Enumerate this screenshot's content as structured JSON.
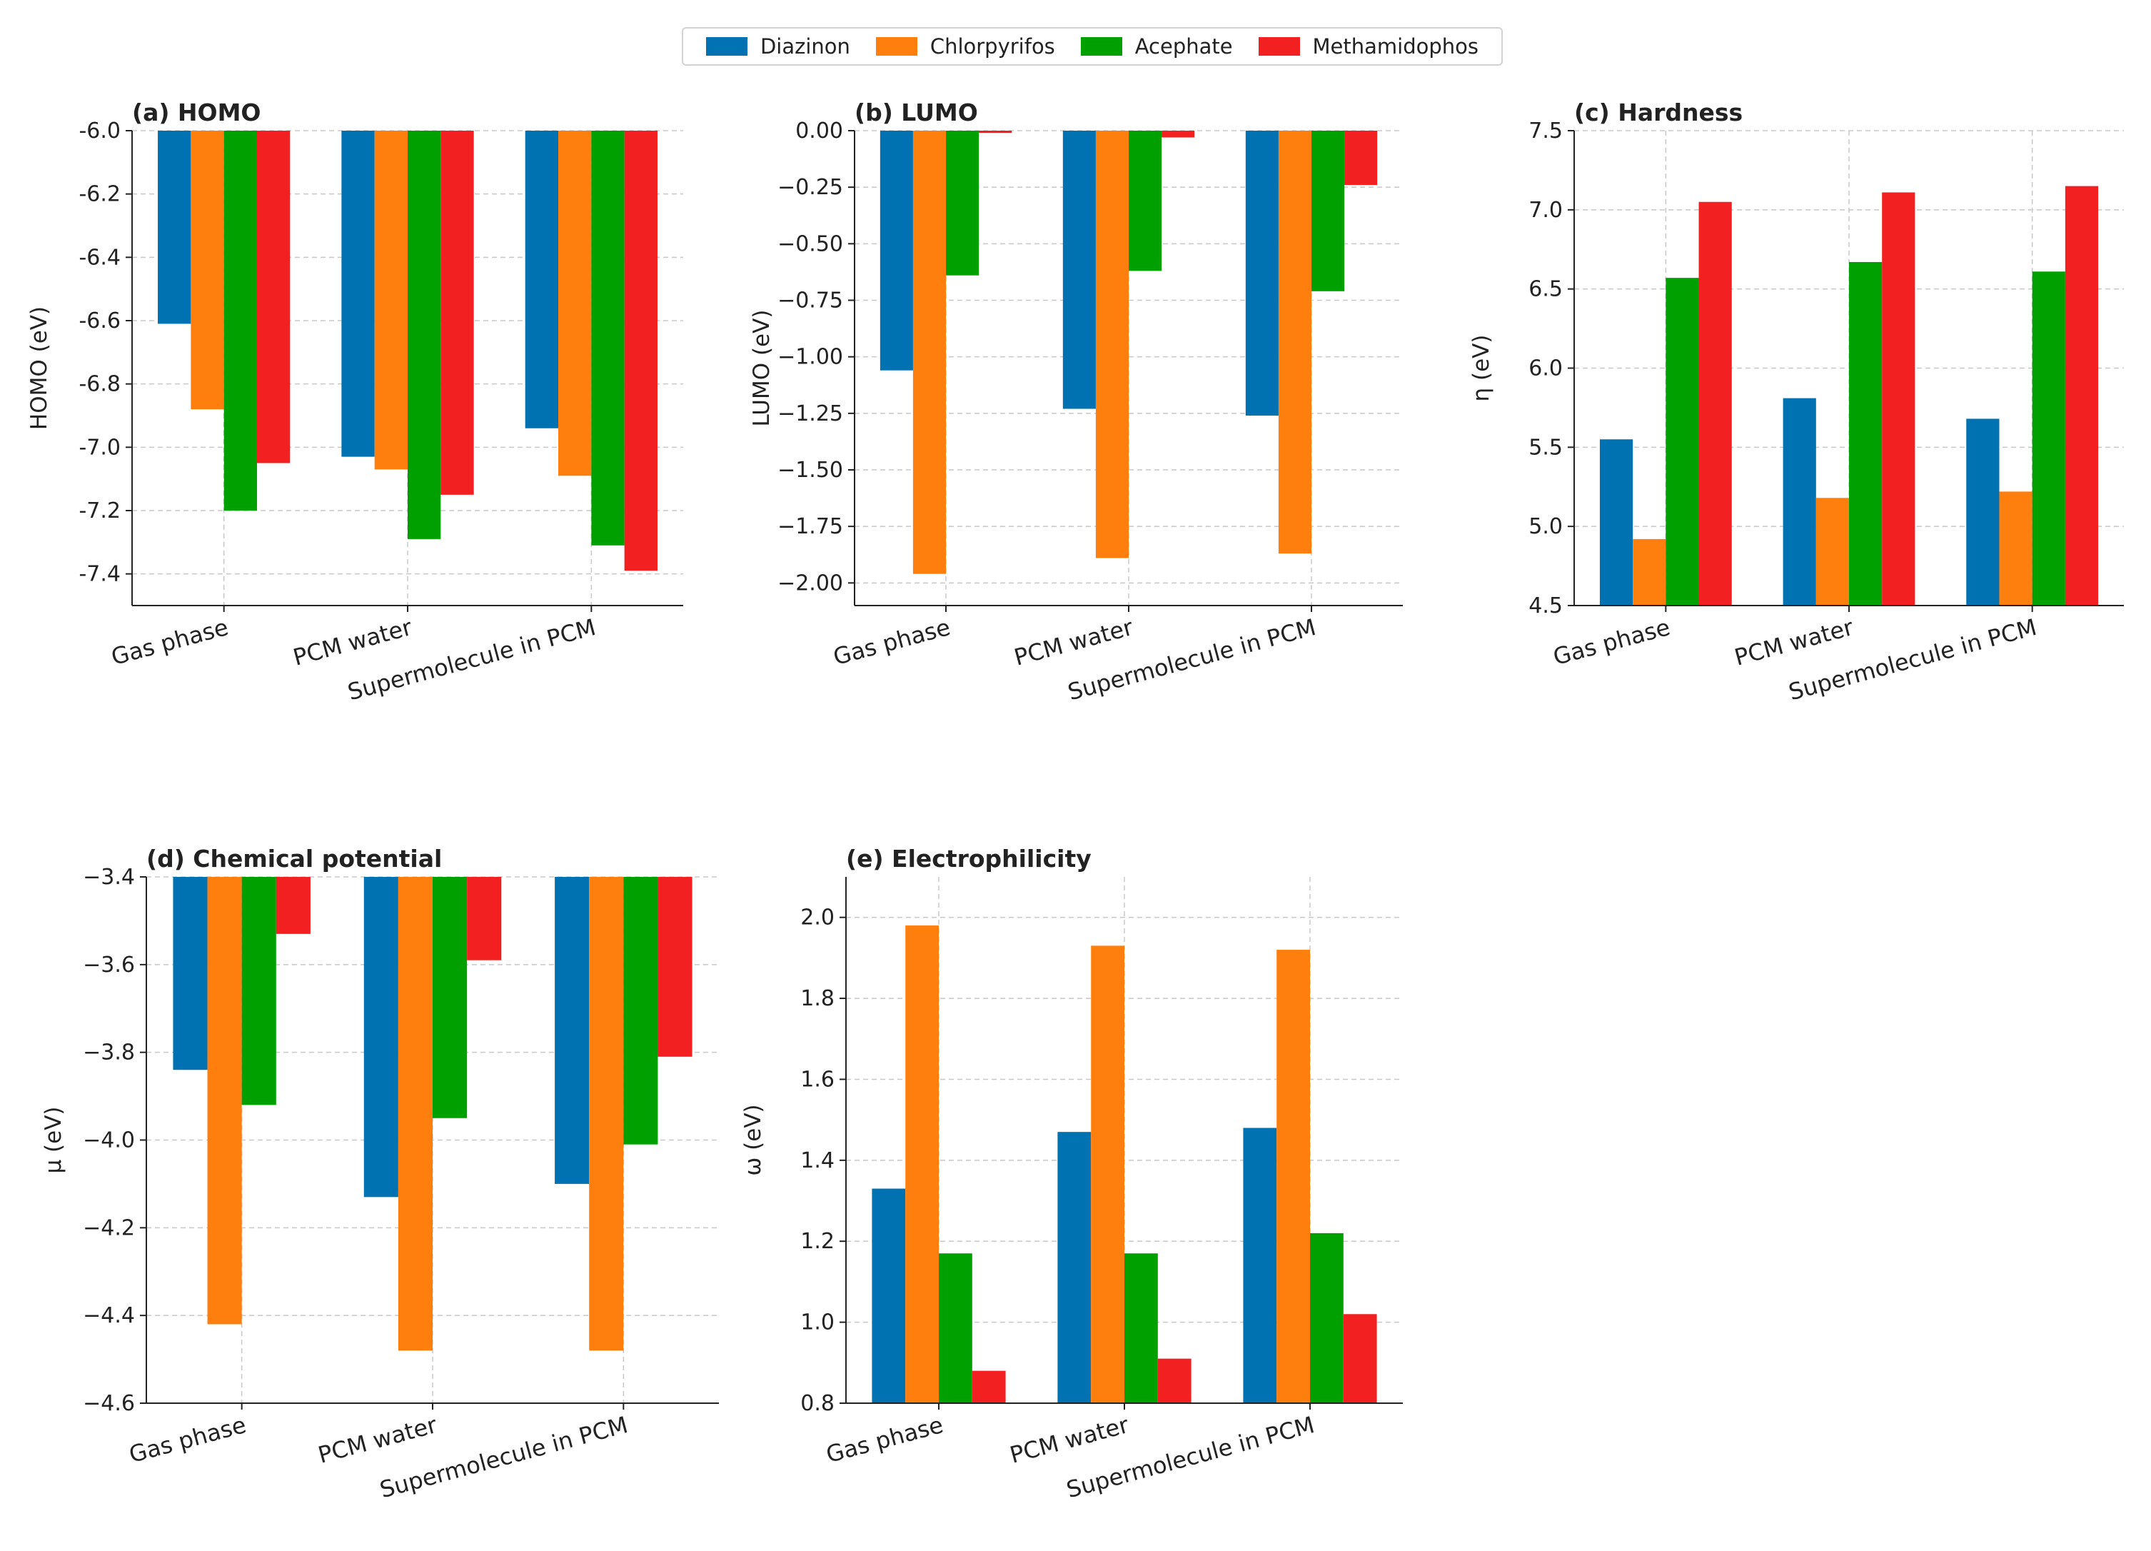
{
  "legend": [
    {
      "name": "Diazinon",
      "color": "#0072b2"
    },
    {
      "name": "Chlorpyrifos",
      "color": "#ff7f0e"
    },
    {
      "name": "Acephate",
      "color": "#00a000"
    },
    {
      "name": "Methamidophos",
      "color": "#f22020"
    }
  ],
  "chart_data": [
    {
      "type": "bar",
      "title": "(a) HOMO",
      "ylabel": "HOMO (eV)",
      "xlabel": "",
      "categories": [
        "Gas phase",
        "PCM water",
        "Supermolecule in PCM"
      ],
      "ylim": [
        -7.5,
        -6.0
      ],
      "yticks": [
        "-6.0",
        "-6.2",
        "-6.4",
        "-6.6",
        "-6.8",
        "-7.0",
        "-7.2",
        "-7.4"
      ],
      "ytick_values": [
        -6.0,
        -6.2,
        -6.4,
        -6.6,
        -6.8,
        -7.0,
        -7.2,
        -7.4
      ],
      "series": [
        {
          "name": "Diazinon",
          "values": [
            -6.61,
            -7.03,
            -6.94
          ]
        },
        {
          "name": "Chlorpyrifos",
          "values": [
            -6.88,
            -7.07,
            -7.09
          ]
        },
        {
          "name": "Acephate",
          "values": [
            -7.2,
            -7.29,
            -7.31
          ]
        },
        {
          "name": "Methamidophos",
          "values": [
            -7.05,
            -7.15,
            -7.39
          ]
        }
      ],
      "grid": true
    },
    {
      "type": "bar",
      "title": "(b) LUMO",
      "ylabel": "LUMO (eV)",
      "xlabel": "",
      "categories": [
        "Gas phase",
        "PCM water",
        "Supermolecule in PCM"
      ],
      "ylim": [
        -2.1,
        0.0
      ],
      "yticks": [
        "0.00",
        "−0.25",
        "−0.50",
        "−0.75",
        "−1.00",
        "−1.25",
        "−1.50",
        "−1.75",
        "−2.00"
      ],
      "ytick_values": [
        0.0,
        -0.25,
        -0.5,
        -0.75,
        -1.0,
        -1.25,
        -1.5,
        -1.75,
        -2.0
      ],
      "series": [
        {
          "name": "Diazinon",
          "values": [
            -1.06,
            -1.23,
            -1.26
          ]
        },
        {
          "name": "Chlorpyrifos",
          "values": [
            -1.96,
            -1.89,
            -1.87
          ]
        },
        {
          "name": "Acephate",
          "values": [
            -0.64,
            -0.62,
            -0.71
          ]
        },
        {
          "name": "Methamidophos",
          "values": [
            -0.01,
            -0.03,
            -0.24
          ]
        }
      ],
      "grid": true
    },
    {
      "type": "bar",
      "title": "(c) Hardness",
      "ylabel": "η (eV)",
      "xlabel": "",
      "categories": [
        "Gas phase",
        "PCM water",
        "Supermolecule in PCM"
      ],
      "ylim": [
        4.5,
        7.5
      ],
      "yticks": [
        "7.5",
        "7.0",
        "6.5",
        "6.0",
        "5.5",
        "5.0",
        "4.5"
      ],
      "ytick_values": [
        7.5,
        7.0,
        6.5,
        6.0,
        5.5,
        5.0,
        4.5
      ],
      "baseline": 4.5,
      "series": [
        {
          "name": "Diazinon",
          "values": [
            5.55,
            5.81,
            5.68
          ]
        },
        {
          "name": "Chlorpyrifos",
          "values": [
            4.92,
            5.18,
            5.22
          ]
        },
        {
          "name": "Acephate",
          "values": [
            6.57,
            6.67,
            6.61
          ]
        },
        {
          "name": "Methamidophos",
          "values": [
            7.05,
            7.11,
            7.15
          ]
        }
      ],
      "grid": true
    },
    {
      "type": "bar",
      "title": "(d) Chemical potential",
      "ylabel": "μ (eV)",
      "xlabel": "",
      "categories": [
        "Gas phase",
        "PCM water",
        "Supermolecule in PCM"
      ],
      "ylim": [
        -4.6,
        -3.4
      ],
      "yticks": [
        "−3.4",
        "−3.6",
        "−3.8",
        "−4.0",
        "−4.2",
        "−4.4",
        "−4.6"
      ],
      "ytick_values": [
        -3.4,
        -3.6,
        -3.8,
        -4.0,
        -4.2,
        -4.4,
        -4.6
      ],
      "series": [
        {
          "name": "Diazinon",
          "values": [
            -3.84,
            -4.13,
            -4.1
          ]
        },
        {
          "name": "Chlorpyrifos",
          "values": [
            -4.42,
            -4.48,
            -4.48
          ]
        },
        {
          "name": "Acephate",
          "values": [
            -3.92,
            -3.95,
            -4.01
          ]
        },
        {
          "name": "Methamidophos",
          "values": [
            -3.53,
            -3.59,
            -3.81
          ]
        }
      ],
      "grid": true
    },
    {
      "type": "bar",
      "title": "(e) Electrophilicity",
      "ylabel": "ω (eV)",
      "xlabel": "",
      "categories": [
        "Gas phase",
        "PCM water",
        "Supermolecule in PCM"
      ],
      "ylim": [
        0.8,
        2.1
      ],
      "yticks": [
        "2.0",
        "1.8",
        "1.6",
        "1.4",
        "1.2",
        "1.0",
        "0.8"
      ],
      "ytick_values": [
        2.0,
        1.8,
        1.6,
        1.4,
        1.2,
        1.0,
        0.8
      ],
      "baseline": 0.8,
      "series": [
        {
          "name": "Diazinon",
          "values": [
            1.33,
            1.47,
            1.48
          ]
        },
        {
          "name": "Chlorpyrifos",
          "values": [
            1.98,
            1.93,
            1.92
          ]
        },
        {
          "name": "Acephate",
          "values": [
            1.17,
            1.17,
            1.22
          ]
        },
        {
          "name": "Methamidophos",
          "values": [
            0.88,
            0.91,
            1.02
          ]
        }
      ],
      "grid": true
    }
  ]
}
